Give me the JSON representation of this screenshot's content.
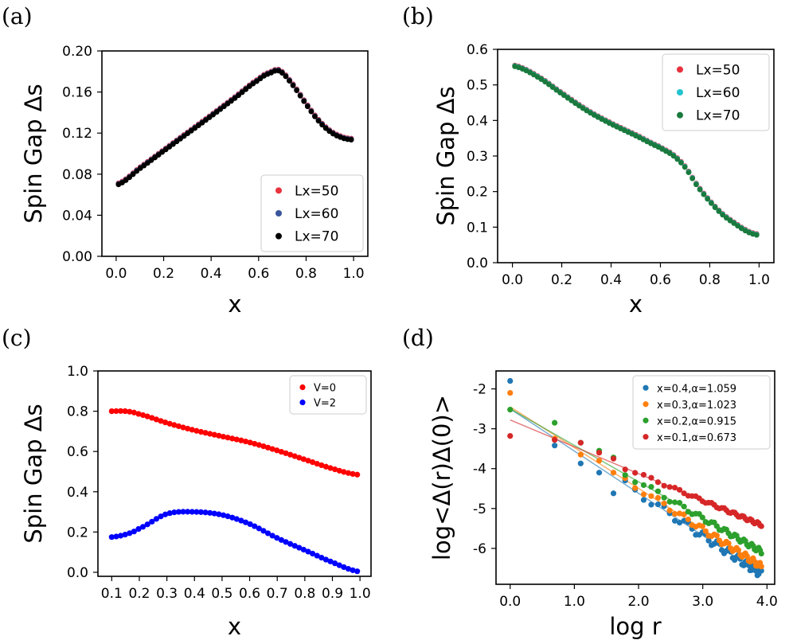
{
  "figure": {
    "panel_labels": [
      "(a)",
      "(b)",
      "(c)",
      "(d)"
    ]
  },
  "chart_data": [
    {
      "id": "a",
      "type": "scatter",
      "panel_label": "(a)",
      "xlabel": "x",
      "ylabel": "Spin Gap Δs",
      "xlim": [
        -0.06,
        1.06
      ],
      "ylim": [
        0,
        0.2
      ],
      "xticks": [
        0.0,
        0.2,
        0.4,
        0.6,
        0.8,
        1.0
      ],
      "xticklabels": [
        "0.0",
        "0.2",
        "0.4",
        "0.6",
        "0.8",
        "1.0"
      ],
      "yticks": [
        0.0,
        0.04,
        0.08,
        0.12,
        0.16,
        0.2
      ],
      "yticklabels": [
        "0.00",
        "0.04",
        "0.08",
        "0.12",
        "0.16",
        "0.20"
      ],
      "legend_position": "lower-right",
      "legend_size": "large",
      "series": [
        {
          "name": "Lx=50",
          "color": "#e8323e",
          "offset": 0.0012,
          "x": [
            0.01,
            0.1,
            0.2,
            0.3,
            0.4,
            0.5,
            0.6,
            0.65,
            0.69,
            0.75,
            0.8,
            0.85,
            0.9,
            0.95,
            0.99
          ],
          "y": [
            0.07,
            0.0855,
            0.1025,
            0.1195,
            0.1365,
            0.154,
            0.1715,
            0.1785,
            0.18,
            0.165,
            0.148,
            0.1325,
            0.1215,
            0.1155,
            0.1135
          ]
        },
        {
          "name": "Lx=60",
          "color": "#3a559b",
          "offset": 0.0006,
          "x": [
            0.01,
            0.1,
            0.2,
            0.3,
            0.4,
            0.5,
            0.6,
            0.65,
            0.69,
            0.75,
            0.8,
            0.85,
            0.9,
            0.95,
            0.99
          ],
          "y": [
            0.07,
            0.0855,
            0.1025,
            0.1195,
            0.1365,
            0.154,
            0.1715,
            0.1785,
            0.18,
            0.165,
            0.148,
            0.1325,
            0.1215,
            0.1155,
            0.1135
          ]
        },
        {
          "name": "Lx=70",
          "color": "#000000",
          "offset": 0,
          "x": [
            0.01,
            0.1,
            0.2,
            0.3,
            0.4,
            0.5,
            0.6,
            0.65,
            0.69,
            0.75,
            0.8,
            0.85,
            0.9,
            0.95,
            0.99
          ],
          "y": [
            0.07,
            0.0855,
            0.1025,
            0.1195,
            0.1365,
            0.154,
            0.1715,
            0.1785,
            0.18,
            0.165,
            0.148,
            0.1325,
            0.1215,
            0.1155,
            0.1135
          ]
        }
      ]
    },
    {
      "id": "b",
      "type": "scatter",
      "panel_label": "(b)",
      "xlabel": "x",
      "ylabel": "Spin Gap Δs",
      "xlim": [
        -0.06,
        1.06
      ],
      "ylim": [
        0,
        0.6
      ],
      "xticks": [
        0.0,
        0.2,
        0.4,
        0.6,
        0.8,
        1.0
      ],
      "xticklabels": [
        "0.0",
        "0.2",
        "0.4",
        "0.6",
        "0.8",
        "1.0"
      ],
      "yticks": [
        0.0,
        0.1,
        0.2,
        0.3,
        0.4,
        0.5,
        0.6
      ],
      "yticklabels": [
        "0.0",
        "0.1",
        "0.2",
        "0.3",
        "0.4",
        "0.5",
        "0.6"
      ],
      "legend_position": "top-right",
      "legend_size": "large",
      "series": [
        {
          "name": "Lx=50",
          "color": "#e8323e",
          "offset": 0.003,
          "x": [
            0.01,
            0.1,
            0.2,
            0.3,
            0.4,
            0.5,
            0.6,
            0.65,
            0.7,
            0.75,
            0.8,
            0.85,
            0.9,
            0.95,
            0.99
          ],
          "y": [
            0.552,
            0.523,
            0.475,
            0.428,
            0.39,
            0.357,
            0.323,
            0.302,
            0.268,
            0.215,
            0.172,
            0.136,
            0.11,
            0.088,
            0.078
          ]
        },
        {
          "name": "Lx=60",
          "color": "#22c3cf",
          "offset": 0.0015,
          "x": [
            0.01,
            0.1,
            0.2,
            0.3,
            0.4,
            0.5,
            0.6,
            0.65,
            0.7,
            0.75,
            0.8,
            0.85,
            0.9,
            0.95,
            0.99
          ],
          "y": [
            0.552,
            0.523,
            0.475,
            0.428,
            0.39,
            0.357,
            0.323,
            0.302,
            0.268,
            0.215,
            0.172,
            0.136,
            0.11,
            0.088,
            0.078
          ]
        },
        {
          "name": "Lx=70",
          "color": "#1a7a3e",
          "offset": 0,
          "x": [
            0.01,
            0.1,
            0.2,
            0.3,
            0.4,
            0.5,
            0.6,
            0.65,
            0.7,
            0.75,
            0.8,
            0.85,
            0.9,
            0.95,
            0.99
          ],
          "y": [
            0.552,
            0.523,
            0.475,
            0.428,
            0.39,
            0.357,
            0.323,
            0.302,
            0.268,
            0.215,
            0.172,
            0.136,
            0.11,
            0.088,
            0.078
          ]
        }
      ]
    },
    {
      "id": "c",
      "type": "scatter",
      "panel_label": "(c)",
      "xlabel": "x",
      "ylabel": "Spin Gap Δs",
      "xlim": [
        0.05,
        1.04
      ],
      "ylim": [
        -0.02,
        1.0
      ],
      "xticks": [
        0.1,
        0.2,
        0.3,
        0.4,
        0.5,
        0.6,
        0.7,
        0.8,
        0.9,
        1.0
      ],
      "xticklabels": [
        "0.1",
        "0.2",
        "0.3",
        "0.4",
        "0.5",
        "0.6",
        "0.7",
        "0.8",
        "0.9",
        "1.0"
      ],
      "yticks": [
        0.0,
        0.2,
        0.4,
        0.6,
        0.8,
        1.0
      ],
      "yticklabels": [
        "0.0",
        "0.2",
        "0.4",
        "0.6",
        "0.8",
        "1.0"
      ],
      "legend_position": "top-right",
      "legend_size": "small",
      "series": [
        {
          "name": "V=0",
          "color": "#ff0000",
          "offset": 0,
          "x": [
            0.1,
            0.15,
            0.2,
            0.3,
            0.4,
            0.5,
            0.6,
            0.7,
            0.8,
            0.9,
            0.99
          ],
          "y": [
            0.8,
            0.8,
            0.785,
            0.742,
            0.705,
            0.675,
            0.645,
            0.605,
            0.56,
            0.515,
            0.485
          ]
        },
        {
          "name": "V=2",
          "color": "#0000ff",
          "offset": 0,
          "x": [
            0.1,
            0.15,
            0.2,
            0.3,
            0.4,
            0.5,
            0.6,
            0.7,
            0.8,
            0.9,
            0.99
          ],
          "y": [
            0.175,
            0.188,
            0.218,
            0.29,
            0.3,
            0.285,
            0.24,
            0.17,
            0.11,
            0.05,
            0.005
          ]
        }
      ]
    },
    {
      "id": "d",
      "type": "scatter",
      "panel_label": "(d)",
      "xlabel": "log r",
      "ylabel": "log<Δ(r)Δ(0)>",
      "xlim": [
        -0.22,
        4.12
      ],
      "ylim": [
        -6.9,
        -1.55
      ],
      "xticks": [
        0.0,
        1.0,
        2.0,
        3.0,
        4.0
      ],
      "xticklabels": [
        "0.0",
        "1.0",
        "2.0",
        "3.0",
        "4.0"
      ],
      "yticks": [
        -6,
        -5,
        -4,
        -3,
        -2
      ],
      "yticklabels": [
        "-6",
        "-5",
        "-4",
        "-3",
        "-2"
      ],
      "legend_position": "top-right",
      "legend_size": "small",
      "series": [
        {
          "name": "x=0.4,α=1.059",
          "color": "#1f77b4",
          "intercept": -2.5,
          "slope": -1.059,
          "noise": 0.2,
          "logr_start": [
            0.0,
            0.693,
            1.099,
            1.386,
            1.609
          ],
          "y_start": [
            -1.8,
            -3.42,
            -3.87,
            -4.1,
            -4.62
          ]
        },
        {
          "name": "x=0.3,α=1.023",
          "color": "#ff7f0e",
          "intercept": -2.45,
          "slope": -1.023,
          "noise": 0.15,
          "logr_start": [
            0.0,
            0.693,
            1.099,
            1.386,
            1.609
          ],
          "y_start": [
            -2.1,
            -3.25,
            -3.65,
            -3.8,
            -4.1
          ]
        },
        {
          "name": "x=0.2,α=0.915",
          "color": "#2ca02c",
          "intercept": -2.5,
          "slope": -0.915,
          "noise": 0.12,
          "logr_start": [
            0.0,
            0.693,
            1.099,
            1.386,
            1.609
          ],
          "y_start": [
            -2.52,
            -2.85,
            -3.35,
            -3.55,
            -3.72
          ]
        },
        {
          "name": "x=0.1,α=0.673",
          "color": "#d62728",
          "intercept": -2.78,
          "slope": -0.673,
          "noise": 0.07,
          "logr_start": [
            0.0,
            0.693,
            1.099,
            1.386,
            1.609
          ],
          "y_start": [
            -3.18,
            -3.28,
            -3.35,
            -3.6,
            -3.75
          ]
        }
      ]
    }
  ]
}
